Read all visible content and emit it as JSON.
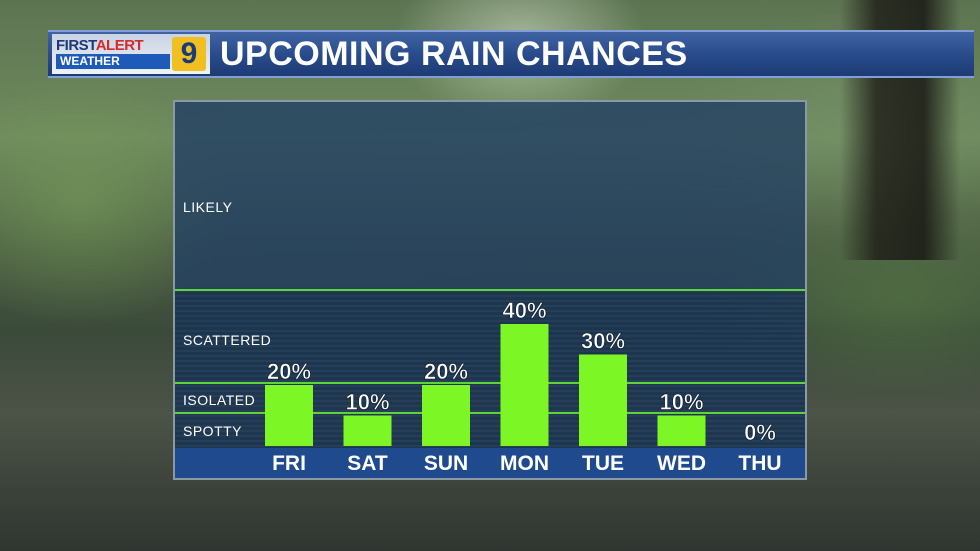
{
  "header": {
    "logo_first": "FIRST",
    "logo_alert": "ALERT",
    "logo_weather": "WEATHER",
    "logo_channel": "9",
    "title": "UPCOMING RAIN CHANCES"
  },
  "colors": {
    "bar": "#7cf625",
    "threshold_line": "#5fd43a",
    "header_blue": "#2a4c8c",
    "day_strip": "#1f4a8e"
  },
  "chart_data": {
    "type": "bar",
    "categories": [
      "FRI",
      "SAT",
      "SUN",
      "MON",
      "TUE",
      "WED",
      "THU"
    ],
    "values": [
      20,
      10,
      20,
      40,
      30,
      10,
      0
    ],
    "value_labels": [
      "20%",
      "10%",
      "20%",
      "40%",
      "30%",
      "10%",
      "0%"
    ],
    "units": "%",
    "ylim": [
      0,
      100
    ],
    "categories_bands": [
      {
        "label": "SPOTTY",
        "value": 10
      },
      {
        "label": "ISOLATED",
        "value": 20
      },
      {
        "label": "SCATTERED",
        "value": 50
      },
      {
        "label": "LIKELY",
        "value": 100
      }
    ],
    "threshold_lines": [
      10,
      20,
      50
    ],
    "grid": false,
    "legend": "none"
  }
}
